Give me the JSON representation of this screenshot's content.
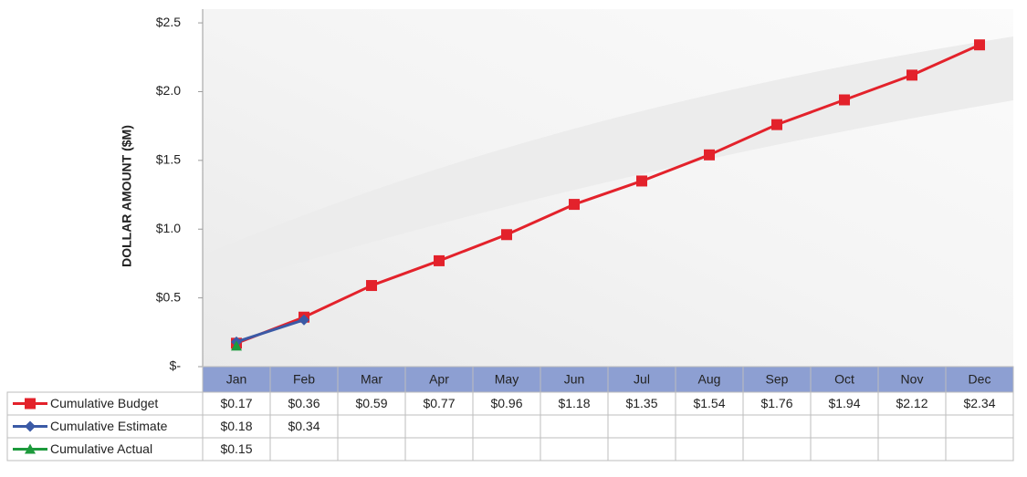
{
  "chart_data": {
    "type": "line",
    "y_label": "DOLLAR AMOUNT ($M)",
    "categories": [
      "Jan",
      "Feb",
      "Mar",
      "Apr",
      "May",
      "Jun",
      "Jul",
      "Aug",
      "Sep",
      "Oct",
      "Nov",
      "Dec"
    ],
    "series": [
      {
        "name": "Cumulative Budget",
        "color": "#e3222b",
        "marker": "square",
        "values": [
          0.17,
          0.36,
          0.59,
          0.77,
          0.96,
          1.18,
          1.35,
          1.54,
          1.76,
          1.94,
          2.12,
          2.34
        ],
        "value_labels": [
          "$0.17",
          "$0.36",
          "$0.59",
          "$0.77",
          "$0.96",
          "$1.18",
          "$1.35",
          "$1.54",
          "$1.76",
          "$1.94",
          "$2.12",
          "$2.34"
        ]
      },
      {
        "name": "Cumulative Estimate",
        "color": "#3b5aa6",
        "marker": "diamond",
        "values": [
          0.18,
          0.34,
          null,
          null,
          null,
          null,
          null,
          null,
          null,
          null,
          null,
          null
        ],
        "value_labels": [
          "$0.18",
          "$0.34",
          null,
          null,
          null,
          null,
          null,
          null,
          null,
          null,
          null,
          null
        ]
      },
      {
        "name": "Cumulative Actual",
        "color": "#1d9a3c",
        "marker": "triangle",
        "values": [
          0.15,
          null,
          null,
          null,
          null,
          null,
          null,
          null,
          null,
          null,
          null,
          null
        ],
        "value_labels": [
          "$0.15",
          null,
          null,
          null,
          null,
          null,
          null,
          null,
          null,
          null,
          null,
          null
        ]
      }
    ],
    "ylim": [
      0,
      2.6
    ],
    "yticks": [
      {
        "value": 0,
        "label": "$-"
      },
      {
        "value": 0.5,
        "label": "$0.5"
      },
      {
        "value": 1.0,
        "label": "$1.0"
      },
      {
        "value": 1.5,
        "label": "$1.5"
      },
      {
        "value": 2.0,
        "label": "$2.0"
      },
      {
        "value": 2.5,
        "label": "$2.5"
      }
    ],
    "category_band_color": "#8d9fd2"
  }
}
